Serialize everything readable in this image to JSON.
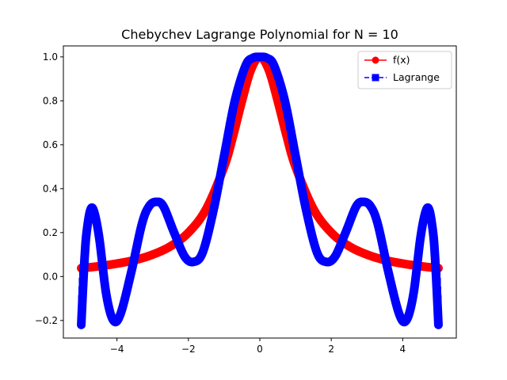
{
  "chart_data": {
    "type": "line",
    "title": "Chebychev Lagrange Polynomial for N = 10",
    "xlabel": "",
    "ylabel": "",
    "xlim": [
      -5.5,
      5.5
    ],
    "ylim": [
      -0.28,
      1.05
    ],
    "x_ticks": [
      -4,
      -2,
      0,
      2,
      4
    ],
    "x_tick_labels": [
      "−4",
      "−2",
      "0",
      "2",
      "4"
    ],
    "y_ticks": [
      -0.2,
      0.0,
      0.2,
      0.4,
      0.6,
      0.8,
      1.0
    ],
    "y_tick_labels": [
      "−0.2",
      "0.0",
      "0.2",
      "0.4",
      "0.6",
      "0.8",
      "1.0"
    ],
    "grid": false,
    "legend_position": "top-right",
    "x_domain": [
      -5,
      5
    ],
    "series": [
      {
        "name": "f(x)",
        "color": "#ff0000",
        "marker": "circle",
        "x": [
          -5,
          -4.5,
          -4,
          -3.5,
          -3,
          -2.5,
          -2,
          -1.5,
          -1,
          -0.75,
          -0.5,
          -0.25,
          0,
          0.25,
          0.5,
          0.75,
          1,
          1.5,
          2,
          2.5,
          3,
          3.5,
          4,
          4.5,
          5
        ],
        "y": [
          0.038,
          0.047,
          0.059,
          0.075,
          0.1,
          0.138,
          0.2,
          0.308,
          0.5,
          0.64,
          0.8,
          0.941,
          1.0,
          0.941,
          0.8,
          0.64,
          0.5,
          0.308,
          0.2,
          0.138,
          0.1,
          0.075,
          0.059,
          0.047,
          0.038
        ]
      },
      {
        "name": "Lagrange",
        "color": "#0000ff",
        "marker": "square",
        "x": [
          -5,
          -4.95,
          -4.9,
          -4.85,
          -4.75,
          -4.65,
          -4.5,
          -4.3,
          -4.1,
          -3.9,
          -3.6,
          -3.3,
          -3.1,
          -2.9,
          -2.7,
          -2.4,
          -2.1,
          -1.85,
          -1.6,
          -1.3,
          -1.0,
          -0.7,
          -0.4,
          -0.2,
          0,
          0.2,
          0.4,
          0.7,
          1.0,
          1.3,
          1.6,
          1.85,
          2.1,
          2.4,
          2.7,
          2.9,
          3.1,
          3.3,
          3.6,
          3.9,
          4.1,
          4.3,
          4.5,
          4.65,
          4.75,
          4.85,
          4.9,
          4.95,
          5
        ],
        "y": [
          -0.22,
          -0.05,
          0.1,
          0.2,
          0.3,
          0.3,
          0.18,
          -0.08,
          -0.2,
          -0.17,
          0.02,
          0.24,
          0.32,
          0.34,
          0.32,
          0.2,
          0.09,
          0.067,
          0.11,
          0.3,
          0.55,
          0.8,
          0.96,
          0.995,
          1.0,
          0.995,
          0.96,
          0.8,
          0.55,
          0.3,
          0.11,
          0.067,
          0.09,
          0.2,
          0.32,
          0.34,
          0.32,
          0.24,
          0.02,
          -0.17,
          -0.2,
          -0.08,
          0.18,
          0.3,
          0.3,
          0.2,
          0.1,
          -0.05,
          -0.22
        ]
      }
    ]
  }
}
